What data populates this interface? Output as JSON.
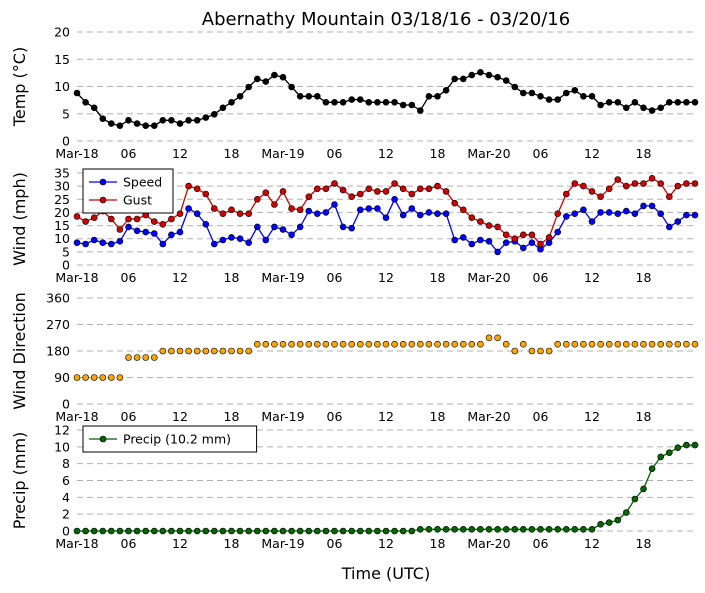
{
  "title": "Abernathy Mountain 03/18/16 - 03/20/16",
  "xlabel": "Time (UTC)",
  "x_tick_labels": [
    "Mar-18",
    "06",
    "12",
    "18",
    "Mar-19",
    "06",
    "12",
    "18",
    "Mar-20",
    "06",
    "12",
    "18"
  ],
  "x_tick_hours": [
    0,
    6,
    12,
    18,
    24,
    30,
    36,
    42,
    48,
    54,
    60,
    66
  ],
  "x_range_hours": [
    0,
    72
  ],
  "chart_data": [
    {
      "type": "line",
      "ylabel": "Temp (°C)",
      "ylim": [
        0,
        20
      ],
      "yticks": [
        "0",
        "5",
        "10",
        "15",
        "20"
      ],
      "grid": true,
      "x_hours": [
        0,
        1,
        2,
        3,
        4,
        5,
        6,
        7,
        8,
        9,
        10,
        11,
        12,
        13,
        14,
        15,
        16,
        17,
        18,
        19,
        20,
        21,
        22,
        23,
        24,
        25,
        26,
        27,
        28,
        29,
        30,
        31,
        32,
        33,
        34,
        35,
        36,
        37,
        38,
        39,
        40,
        41,
        42,
        43,
        44,
        45,
        46,
        47,
        48,
        49,
        50,
        51,
        52,
        53,
        54,
        55,
        56,
        57,
        58,
        59,
        60,
        61,
        62,
        63,
        64,
        65,
        66,
        67,
        68,
        69,
        70,
        71,
        72
      ],
      "series": [
        {
          "name": "",
          "color": "#000000",
          "values": [
            8.8,
            7.1,
            6.1,
            4.1,
            3.2,
            2.8,
            3.8,
            3.2,
            2.8,
            2.8,
            3.8,
            3.8,
            3.2,
            3.8,
            3.8,
            4.3,
            4.9,
            6.1,
            7.1,
            8.2,
            9.9,
            11.4,
            10.9,
            12.1,
            11.7,
            9.9,
            8.2,
            8.2,
            8.2,
            7.1,
            7.1,
            7.1,
            7.6,
            7.6,
            7.1,
            7.1,
            7.1,
            7.1,
            6.6,
            6.6,
            5.6,
            8.2,
            8.2,
            9.3,
            11.4,
            11.4,
            12.1,
            12.6,
            12.1,
            11.7,
            11.1,
            9.9,
            8.8,
            8.8,
            8.2,
            7.6,
            7.6,
            8.8,
            9.3,
            8.2,
            8.2,
            6.6,
            7.1,
            7.1,
            6.1,
            7.1,
            6.1,
            5.6,
            6.1,
            7.1,
            7.1,
            7.1,
            7.1
          ]
        }
      ]
    },
    {
      "type": "line",
      "ylabel": "Wind (mph)",
      "ylim": [
        0,
        35
      ],
      "yticks": [
        "0",
        "5",
        "10",
        "15",
        "20",
        "25",
        "30",
        "35"
      ],
      "grid": true,
      "legend": "top-left",
      "x_hours": [
        0,
        1,
        2,
        3,
        4,
        5,
        6,
        7,
        8,
        9,
        10,
        11,
        12,
        13,
        14,
        15,
        16,
        17,
        18,
        19,
        20,
        21,
        22,
        23,
        24,
        25,
        26,
        27,
        28,
        29,
        30,
        31,
        32,
        33,
        34,
        35,
        36,
        37,
        38,
        39,
        40,
        41,
        42,
        43,
        44,
        45,
        46,
        47,
        48,
        49,
        50,
        51,
        52,
        53,
        54,
        55,
        56,
        57,
        58,
        59,
        60,
        61,
        62,
        63,
        64,
        65,
        66,
        67,
        68,
        69,
        70,
        71,
        72
      ],
      "series": [
        {
          "name": "Speed",
          "color": "#0000ff",
          "values": [
            8.5,
            8,
            9.5,
            8.5,
            8,
            9,
            14.5,
            13,
            12.5,
            12,
            8,
            11.5,
            12.5,
            21.5,
            19.5,
            15.5,
            8,
            9.5,
            10.5,
            10,
            8.5,
            14.5,
            9.5,
            14.5,
            13.5,
            11.5,
            14.5,
            20.5,
            19.5,
            20,
            23,
            14.5,
            14,
            21,
            21.5,
            21.5,
            18,
            25,
            19,
            21.5,
            19,
            20,
            19.5,
            19.5,
            9.5,
            10.5,
            8,
            9.5,
            9,
            5,
            8.5,
            9,
            6.5,
            8.5,
            6,
            8.5,
            12.5,
            18.5,
            19.5,
            21,
            16.5,
            20,
            20,
            19.5,
            20.5,
            19.5,
            22.5,
            22.5,
            19.5,
            14.5,
            16.5,
            19,
            19
          ]
        },
        {
          "name": "Gust",
          "color": "#cc0000",
          "values": [
            18.5,
            16.5,
            18,
            20.5,
            17.5,
            13.5,
            17.5,
            17.5,
            19,
            16.5,
            15.5,
            17.5,
            19.5,
            30,
            29,
            27,
            21.5,
            19.5,
            21,
            19.5,
            19.5,
            25,
            27.5,
            23,
            28,
            21.5,
            21,
            26,
            29,
            29,
            31,
            28.5,
            26,
            27,
            29,
            28,
            28,
            31,
            29,
            27,
            29,
            29,
            30,
            28,
            23.5,
            21,
            18,
            16.5,
            15,
            14.5,
            11.5,
            10,
            11.5,
            11.5,
            8,
            10.5,
            19.5,
            27,
            31,
            30,
            28,
            26,
            29,
            32.5,
            30,
            31,
            31,
            33,
            31,
            26,
            30,
            31,
            31
          ]
        }
      ]
    },
    {
      "type": "scatter",
      "ylabel": "Wind Direction",
      "ylim": [
        0,
        360
      ],
      "yticks": [
        "0",
        "90",
        "180",
        "270",
        "360"
      ],
      "grid": true,
      "x_hours": [
        0,
        1,
        2,
        3,
        4,
        5,
        6,
        7,
        8,
        9,
        10,
        11,
        12,
        13,
        14,
        15,
        16,
        17,
        18,
        19,
        20,
        21,
        22,
        23,
        24,
        25,
        26,
        27,
        28,
        29,
        30,
        31,
        32,
        33,
        34,
        35,
        36,
        37,
        38,
        39,
        40,
        41,
        42,
        43,
        44,
        45,
        46,
        47,
        48,
        49,
        50,
        51,
        52,
        53,
        54,
        55,
        56,
        57,
        58,
        59,
        60,
        61,
        62,
        63,
        64,
        65,
        66,
        67,
        68,
        69,
        70,
        71,
        72
      ],
      "series": [
        {
          "name": "",
          "color": "#ffa500",
          "values": [
            90,
            90,
            90,
            90,
            90,
            90,
            158,
            158,
            158,
            158,
            180,
            180,
            180,
            180,
            180,
            180,
            180,
            180,
            180,
            180,
            180,
            203,
            203,
            203,
            203,
            203,
            203,
            203,
            203,
            203,
            203,
            203,
            203,
            203,
            203,
            203,
            203,
            203,
            203,
            203,
            203,
            203,
            203,
            203,
            203,
            203,
            203,
            203,
            225,
            225,
            203,
            180,
            203,
            180,
            180,
            180,
            203,
            203,
            203,
            203,
            203,
            203,
            203,
            203,
            203,
            203,
            203,
            203,
            203,
            203,
            203,
            203,
            203
          ]
        }
      ]
    },
    {
      "type": "line",
      "ylabel": "Precip (mm)",
      "ylim": [
        0,
        12
      ],
      "yticks": [
        "0",
        "2",
        "4",
        "6",
        "8",
        "10",
        "12"
      ],
      "grid": true,
      "legend": "top-left",
      "x_hours": [
        0,
        1,
        2,
        3,
        4,
        5,
        6,
        7,
        8,
        9,
        10,
        11,
        12,
        13,
        14,
        15,
        16,
        17,
        18,
        19,
        20,
        21,
        22,
        23,
        24,
        25,
        26,
        27,
        28,
        29,
        30,
        31,
        32,
        33,
        34,
        35,
        36,
        37,
        38,
        39,
        40,
        41,
        42,
        43,
        44,
        45,
        46,
        47,
        48,
        49,
        50,
        51,
        52,
        53,
        54,
        55,
        56,
        57,
        58,
        59,
        60,
        61,
        62,
        63,
        64,
        65,
        66,
        67,
        68,
        69,
        70,
        71,
        72
      ],
      "series": [
        {
          "name": "Precip (10.2 mm)",
          "color": "#006400",
          "values": [
            0,
            0,
            0,
            0,
            0,
            0,
            0,
            0,
            0,
            0,
            0,
            0,
            0,
            0,
            0,
            0,
            0,
            0,
            0,
            0,
            0,
            0,
            0,
            0,
            0,
            0,
            0,
            0,
            0,
            0,
            0,
            0,
            0,
            0,
            0,
            0,
            0,
            0,
            0,
            0,
            0.2,
            0.2,
            0.2,
            0.2,
            0.2,
            0.2,
            0.2,
            0.2,
            0.2,
            0.2,
            0.2,
            0.2,
            0.2,
            0.2,
            0.2,
            0.2,
            0.2,
            0.2,
            0.2,
            0.2,
            0.2,
            0.8,
            1.0,
            1.3,
            2.2,
            3.8,
            5.0,
            7.4,
            8.8,
            9.3,
            9.9,
            10.2,
            10.2
          ]
        }
      ]
    }
  ]
}
